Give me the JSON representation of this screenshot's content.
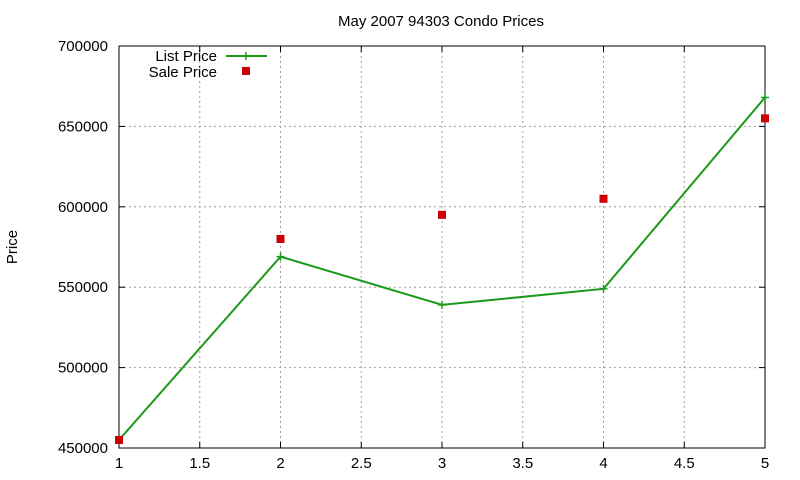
{
  "chart_data": {
    "type": "line",
    "title": "May 2007 94303 Condo Prices",
    "xlabel": "",
    "ylabel": "Price",
    "xlim": [
      1,
      5
    ],
    "ylim": [
      450000,
      700000
    ],
    "xticks": [
      "1",
      "1.5",
      "2",
      "2.5",
      "3",
      "3.5",
      "4",
      "4.5",
      "5"
    ],
    "yticks": [
      "450000",
      "500000",
      "550000",
      "600000",
      "650000",
      "700000"
    ],
    "grid": true,
    "legend_position": "top-left",
    "series": [
      {
        "name": "List Price",
        "style": "line-with-plus-markers",
        "color": "#1a9a1a",
        "x": [
          1,
          2,
          3,
          4,
          5
        ],
        "y": [
          455000,
          569000,
          539000,
          549000,
          668000
        ]
      },
      {
        "name": "Sale Price",
        "style": "square-markers",
        "color": "#cc0000",
        "x": [
          1,
          2,
          3,
          4,
          5
        ],
        "y": [
          455000,
          580000,
          595000,
          605000,
          655000
        ]
      }
    ]
  }
}
